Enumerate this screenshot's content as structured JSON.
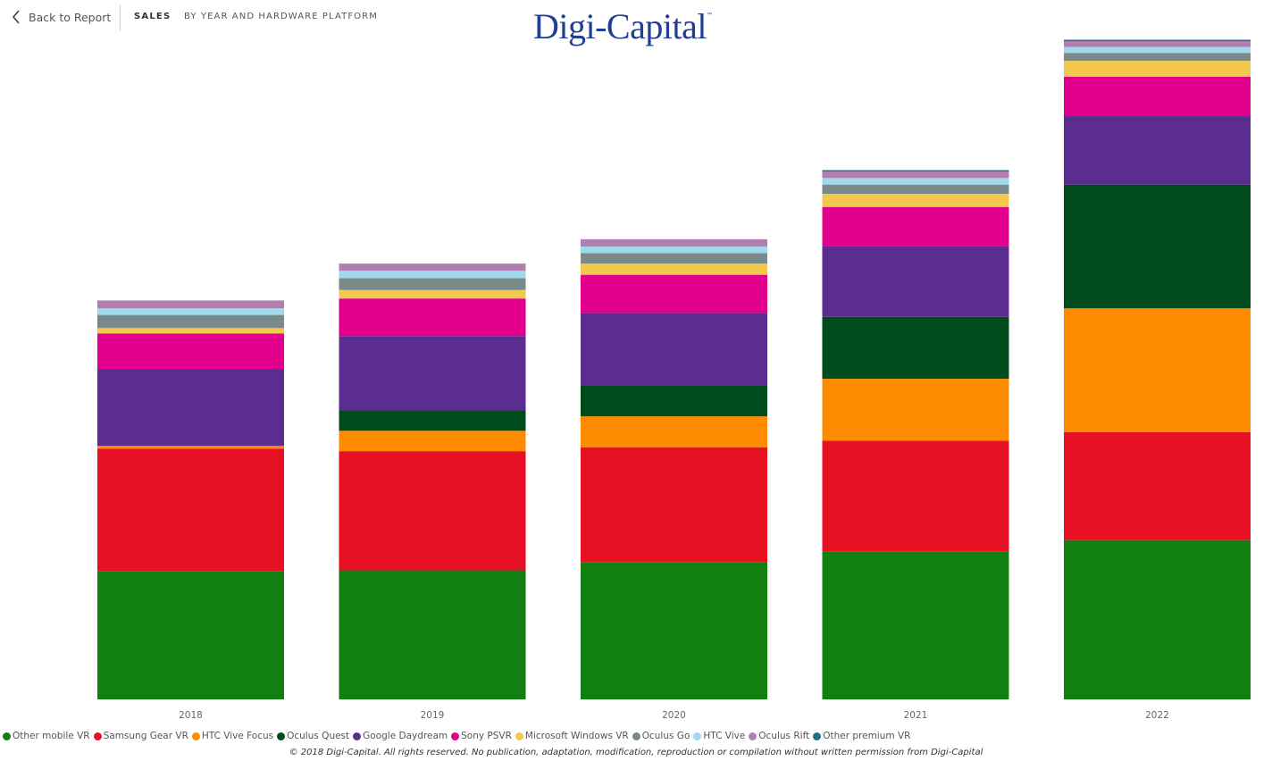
{
  "header": {
    "back_label": "Back to Report",
    "section": "SALES",
    "subtitle": "BY YEAR AND HARDWARE PLATFORM",
    "logo_text": "Digi-Capital",
    "logo_mark": "™"
  },
  "footer": {
    "copyright": "© 2018 Digi-Capital. All rights reserved. No publication, adaptation, modification, reproduction or compilation without written permission from Digi-Capital"
  },
  "chart_data": {
    "type": "bar",
    "stacked": true,
    "categories": [
      "2018",
      "2019",
      "2020",
      "2021",
      "2022"
    ],
    "legend_position": "bottom-left",
    "grid": false,
    "ylim": [
      0,
      100
    ],
    "series": [
      {
        "name": "Other mobile VR",
        "color": "#118011",
        "values": [
          19.5,
          19.6,
          20.8,
          22.5,
          24.2
        ]
      },
      {
        "name": "Samsung Gear VR",
        "color": "#e81123",
        "values": [
          18.6,
          18.1,
          17.5,
          16.8,
          16.4
        ]
      },
      {
        "name": "HTC Vive Focus",
        "color": "#ff8c00",
        "values": [
          0.4,
          3.1,
          4.7,
          9.4,
          18.8
        ]
      },
      {
        "name": "Oculus Quest",
        "color": "#004b1c",
        "values": [
          0,
          3.1,
          4.7,
          9.4,
          18.8
        ]
      },
      {
        "name": "Google Daydream",
        "color": "#5c2d91",
        "values": [
          11.7,
          11.3,
          11.0,
          10.7,
          10.4
        ]
      },
      {
        "name": "Sony PSVR",
        "color": "#e3008c",
        "values": [
          5.4,
          5.7,
          5.8,
          6.0,
          6.0
        ]
      },
      {
        "name": "Microsoft Windows VR",
        "color": "#f2c94c",
        "values": [
          0.8,
          1.3,
          1.7,
          2.0,
          2.4
        ]
      },
      {
        "name": "Oculus Go",
        "color": "#7a8a8a",
        "values": [
          2.0,
          1.8,
          1.6,
          1.4,
          1.2
        ]
      },
      {
        "name": "HTC Vive",
        "color": "#a0d8ec",
        "values": [
          1.0,
          1.1,
          1.0,
          1.0,
          0.9
        ]
      },
      {
        "name": "Oculus Rift",
        "color": "#b07fb0",
        "values": [
          1.2,
          1.1,
          1.1,
          1.0,
          0.9
        ]
      },
      {
        "name": "Other premium VR",
        "color": "#1f6f8b",
        "values": [
          0,
          0,
          0,
          0.2,
          0.2
        ]
      }
    ]
  }
}
